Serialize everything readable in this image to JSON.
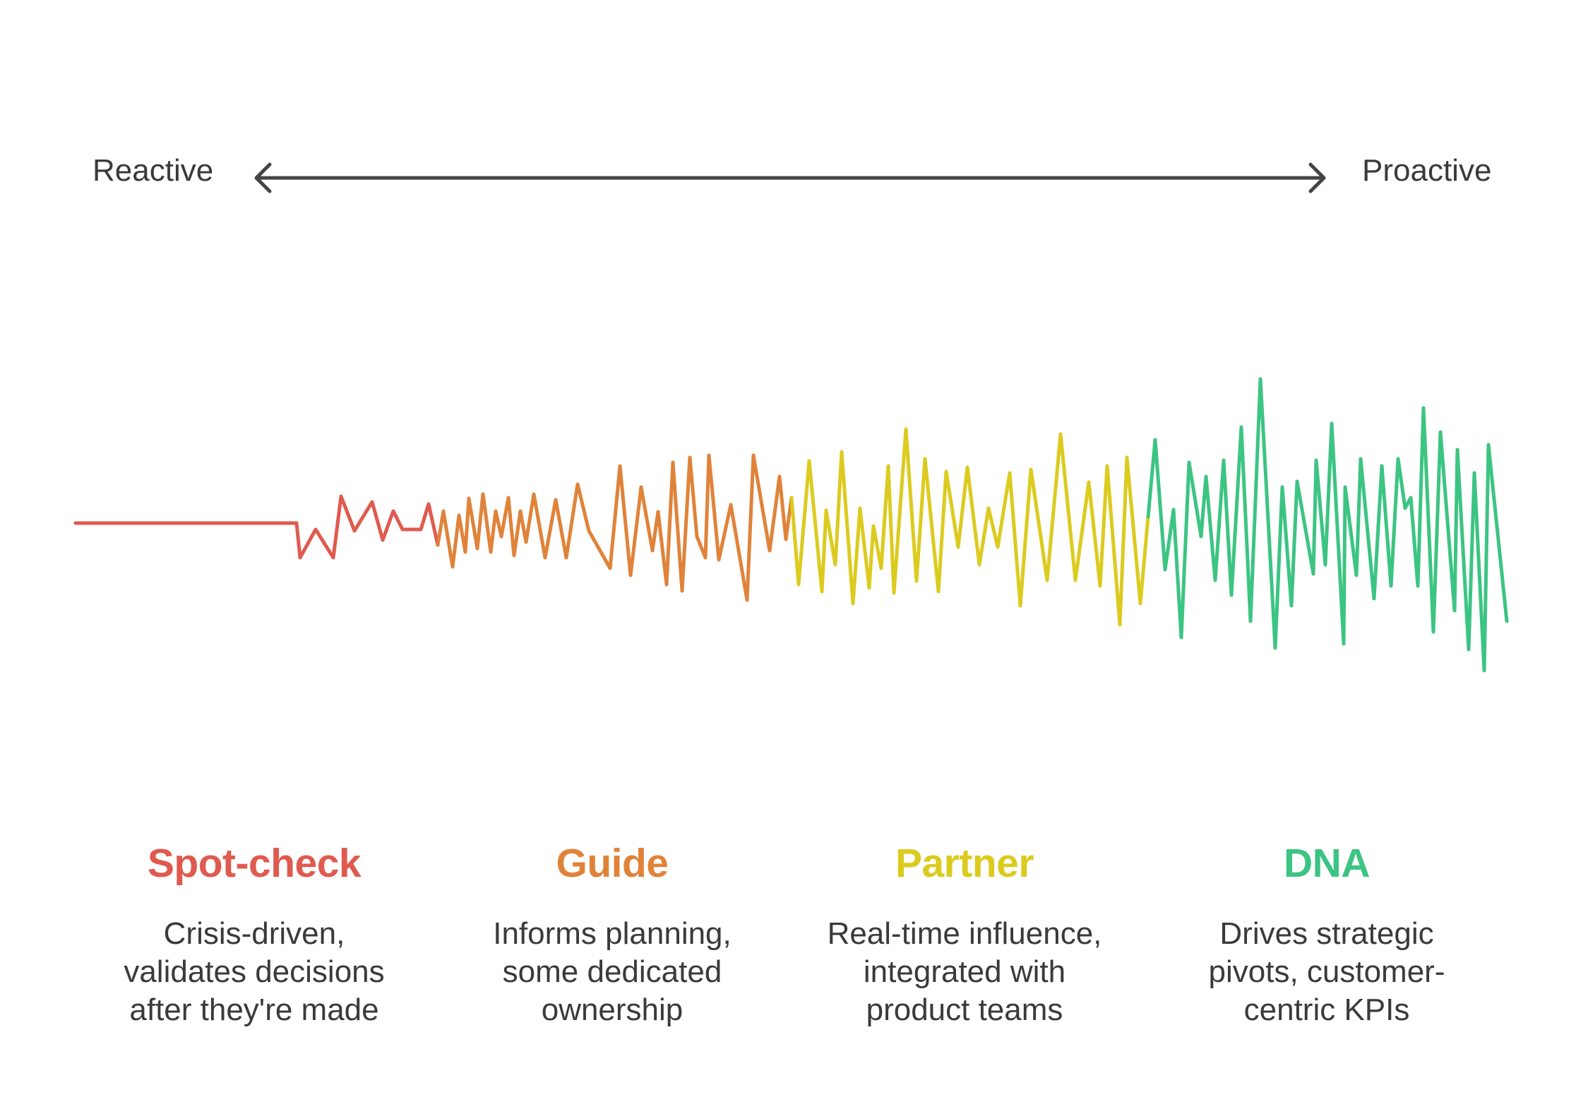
{
  "axis": {
    "left_label": "Reactive",
    "right_label": "Proactive",
    "line_color": "#444444"
  },
  "stages": [
    {
      "title": "Spot-check",
      "color": "#e05a4f",
      "description_lines": [
        "Crisis-driven,",
        "validates decisions",
        "after they're made"
      ]
    },
    {
      "title": "Guide",
      "color": "#e0833a",
      "description_lines": [
        "Informs planning,",
        "some dedicated",
        "ownership"
      ]
    },
    {
      "title": "Partner",
      "color": "#dccb1f",
      "description_lines": [
        "Real-time influence,",
        "integrated with",
        "product teams"
      ]
    },
    {
      "title": "DNA",
      "color": "#3cc483",
      "description_lines": [
        "Drives strategic",
        "pivots, customer-",
        "centric KPIs"
      ]
    }
  ]
}
